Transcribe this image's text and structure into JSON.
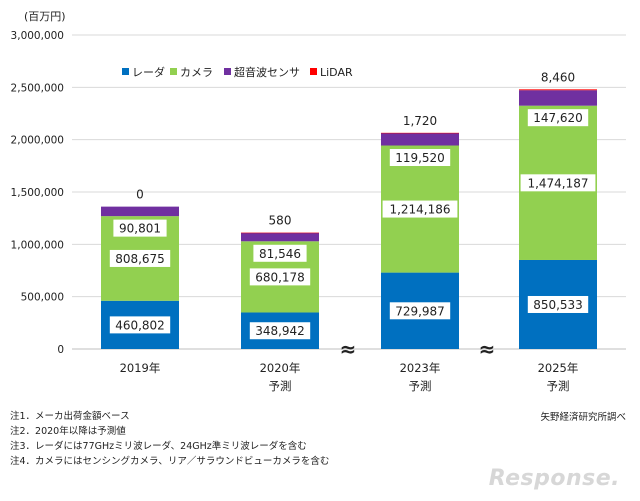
{
  "chart_data": {
    "type": "bar",
    "stacked": true,
    "unit_label": "(百万円)",
    "categories": [
      "2019年",
      "2020年",
      "2023年",
      "2025年"
    ],
    "category_sublabels": [
      "",
      "予測",
      "予測",
      "予測"
    ],
    "series": [
      {
        "name": "レーダ",
        "color": "#0070c0",
        "values": [
          460802,
          348942,
          729987,
          850533
        ]
      },
      {
        "name": "カメラ",
        "color": "#92d050",
        "values": [
          808675,
          680178,
          1214186,
          1474187
        ]
      },
      {
        "name": "超音波センサ",
        "color": "#7030a0",
        "values": [
          90801,
          81546,
          119520,
          147620
        ]
      },
      {
        "name": "LiDAR",
        "color": "#ff0000",
        "values": [
          0,
          580,
          1720,
          8460
        ]
      }
    ],
    "value_labels": {
      "レーダ": [
        "460,802",
        "348,942",
        "729,987",
        "850,533"
      ],
      "カメラ": [
        "808,675",
        "680,178",
        "1,214,186",
        "1,474,187"
      ],
      "超音波センサ": [
        "90,801",
        "81,546",
        "119,520",
        "147,620"
      ],
      "LiDAR": [
        "0",
        "580",
        "1,720",
        "8,460"
      ]
    },
    "ylim": [
      0,
      3000000
    ],
    "yticks": [
      0,
      500000,
      1000000,
      1500000,
      2000000,
      2500000,
      3000000
    ],
    "ytick_labels": [
      "0",
      "500,000",
      "1,000,000",
      "1,500,000",
      "2,000,000",
      "2,500,000",
      "3,000,000"
    ],
    "axis_break_marks": [
      "≈",
      "≈"
    ],
    "legend_position": "top-left",
    "grid": true
  },
  "notes": [
    "注1．メーカ出荷金額ベース",
    "注2．2020年以降は予測値",
    "注3．レーダには77GHzミリ波レーダ、24GHz準ミリ波レーダを含む",
    "注4．カメラにはセンシングカメラ、リア／サラウンドビューカメラを含む"
  ],
  "source": "矢野経済研究所調べ",
  "watermark": "Response."
}
